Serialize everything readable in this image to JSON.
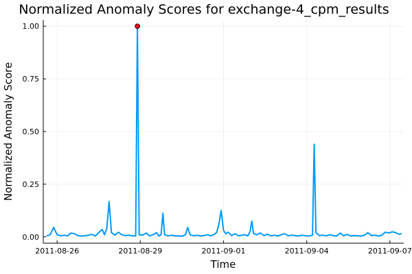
{
  "chart_data": {
    "type": "line",
    "title": "Normalized Anomaly Scores for exchange-4_cpm_results",
    "xlabel": "Time",
    "ylabel": "Normalized Anomaly Score",
    "x_axis_type": "date",
    "xlim": [
      "2011-08-25T12:00",
      "2011-09-07T12:00"
    ],
    "ylim": [
      -0.03,
      1.03
    ],
    "x_ticks": [
      {
        "value": "2011-08-26",
        "label": "2011-08-26"
      },
      {
        "value": "2011-08-29",
        "label": "2011-08-29"
      },
      {
        "value": "2011-09-01",
        "label": "2011-09-01"
      },
      {
        "value": "2011-09-04",
        "label": "2011-09-04"
      },
      {
        "value": "2011-09-07",
        "label": "2011-09-07"
      }
    ],
    "y_ticks": [
      {
        "value": 0.0,
        "label": "0.00"
      },
      {
        "value": 0.25,
        "label": "0.25"
      },
      {
        "value": 0.5,
        "label": "0.50"
      },
      {
        "value": 0.75,
        "label": "0.75"
      },
      {
        "value": 1.0,
        "label": "1.00"
      }
    ],
    "grid": true,
    "legend": "none",
    "series": [
      {
        "color": "#009af9",
        "points": [
          [
            "2011-08-25T15:00",
            0.005
          ],
          [
            "2011-08-25T18:00",
            0.01
          ],
          [
            "2011-08-25T21:00",
            0.045
          ],
          [
            "2011-08-26T00:00",
            0.01
          ],
          [
            "2011-08-26T03:00",
            0.005
          ],
          [
            "2011-08-26T06:00",
            0.008
          ],
          [
            "2011-08-26T09:00",
            0.005
          ],
          [
            "2011-08-26T12:00",
            0.018
          ],
          [
            "2011-08-26T15:00",
            0.015
          ],
          [
            "2011-08-26T18:00",
            0.006
          ],
          [
            "2011-08-26T21:00",
            0.004
          ],
          [
            "2011-08-27T00:00",
            0.005
          ],
          [
            "2011-08-27T03:00",
            0.008
          ],
          [
            "2011-08-27T06:00",
            0.012
          ],
          [
            "2011-08-27T09:00",
            0.004
          ],
          [
            "2011-08-27T12:00",
            0.02
          ],
          [
            "2011-08-27T15:00",
            0.035
          ],
          [
            "2011-08-27T17:00",
            0.01
          ],
          [
            "2011-08-27T19:00",
            0.04
          ],
          [
            "2011-08-27T21:00",
            0.168
          ],
          [
            "2011-08-27T23:00",
            0.02
          ],
          [
            "2011-08-28T02:00",
            0.008
          ],
          [
            "2011-08-28T05:00",
            0.022
          ],
          [
            "2011-08-28T08:00",
            0.01
          ],
          [
            "2011-08-28T11:00",
            0.006
          ],
          [
            "2011-08-28T14:00",
            0.008
          ],
          [
            "2011-08-28T17:00",
            0.005
          ],
          [
            "2011-08-28T20:00",
            0.004
          ],
          [
            "2011-08-28T21:30",
            1.0
          ],
          [
            "2011-08-28T23:00",
            0.01
          ],
          [
            "2011-08-29T02:00",
            0.008
          ],
          [
            "2011-08-29T05:00",
            0.018
          ],
          [
            "2011-08-29T08:00",
            0.005
          ],
          [
            "2011-08-29T11:00",
            0.01
          ],
          [
            "2011-08-29T14:00",
            0.02
          ],
          [
            "2011-08-29T16:00",
            0.004
          ],
          [
            "2011-08-29T18:00",
            0.01
          ],
          [
            "2011-08-29T19:30",
            0.112
          ],
          [
            "2011-08-29T21:00",
            0.01
          ],
          [
            "2011-08-30T00:00",
            0.005
          ],
          [
            "2011-08-30T03:00",
            0.008
          ],
          [
            "2011-08-30T06:00",
            0.004
          ],
          [
            "2011-08-30T09:00",
            0.005
          ],
          [
            "2011-08-30T12:00",
            0.003
          ],
          [
            "2011-08-30T15:00",
            0.01
          ],
          [
            "2011-08-30T17:00",
            0.045
          ],
          [
            "2011-08-30T19:00",
            0.01
          ],
          [
            "2011-08-30T22:00",
            0.005
          ],
          [
            "2011-08-31T01:00",
            0.008
          ],
          [
            "2011-08-31T04:00",
            0.004
          ],
          [
            "2011-08-31T07:00",
            0.006
          ],
          [
            "2011-08-31T10:00",
            0.01
          ],
          [
            "2011-08-31T13:00",
            0.005
          ],
          [
            "2011-08-31T16:00",
            0.012
          ],
          [
            "2011-08-31T18:00",
            0.02
          ],
          [
            "2011-08-31T20:00",
            0.06
          ],
          [
            "2011-08-31T22:00",
            0.125
          ],
          [
            "2011-09-01T00:00",
            0.03
          ],
          [
            "2011-09-01T02:00",
            0.015
          ],
          [
            "2011-09-01T04:00",
            0.022
          ],
          [
            "2011-09-01T07:00",
            0.006
          ],
          [
            "2011-09-01T10:00",
            0.015
          ],
          [
            "2011-09-01T13:00",
            0.005
          ],
          [
            "2011-09-01T16:00",
            0.008
          ],
          [
            "2011-09-01T19:00",
            0.01
          ],
          [
            "2011-09-01T21:00",
            0.004
          ],
          [
            "2011-09-01T23:00",
            0.025
          ],
          [
            "2011-09-02T00:30",
            0.075
          ],
          [
            "2011-09-02T02:00",
            0.015
          ],
          [
            "2011-09-02T05:00",
            0.01
          ],
          [
            "2011-09-02T08:00",
            0.018
          ],
          [
            "2011-09-02T11:00",
            0.006
          ],
          [
            "2011-09-02T14:00",
            0.012
          ],
          [
            "2011-09-02T17:00",
            0.005
          ],
          [
            "2011-09-02T20:00",
            0.008
          ],
          [
            "2011-09-02T23:00",
            0.004
          ],
          [
            "2011-09-03T02:00",
            0.01
          ],
          [
            "2011-09-03T05:00",
            0.015
          ],
          [
            "2011-09-03T08:00",
            0.005
          ],
          [
            "2011-09-03T11:00",
            0.008
          ],
          [
            "2011-09-03T14:00",
            0.006
          ],
          [
            "2011-09-03T17:00",
            0.004
          ],
          [
            "2011-09-03T20:00",
            0.008
          ],
          [
            "2011-09-03T23:00",
            0.005
          ],
          [
            "2011-09-04T02:00",
            0.004
          ],
          [
            "2011-09-04T05:00",
            0.008
          ],
          [
            "2011-09-04T06:30",
            0.44
          ],
          [
            "2011-09-04T08:00",
            0.02
          ],
          [
            "2011-09-04T11:00",
            0.006
          ],
          [
            "2011-09-04T14:00",
            0.008
          ],
          [
            "2011-09-04T17:00",
            0.005
          ],
          [
            "2011-09-04T20:00",
            0.01
          ],
          [
            "2011-09-04T23:00",
            0.006
          ],
          [
            "2011-09-05T02:00",
            0.004
          ],
          [
            "2011-09-05T05:00",
            0.018
          ],
          [
            "2011-09-05T08:00",
            0.005
          ],
          [
            "2011-09-05T11:00",
            0.012
          ],
          [
            "2011-09-05T14:00",
            0.004
          ],
          [
            "2011-09-05T17:00",
            0.006
          ],
          [
            "2011-09-05T20:00",
            0.005
          ],
          [
            "2011-09-05T23:00",
            0.004
          ],
          [
            "2011-09-06T02:00",
            0.008
          ],
          [
            "2011-09-06T05:00",
            0.02
          ],
          [
            "2011-09-06T08:00",
            0.006
          ],
          [
            "2011-09-06T11:00",
            0.008
          ],
          [
            "2011-09-06T14:00",
            0.004
          ],
          [
            "2011-09-06T17:00",
            0.008
          ],
          [
            "2011-09-06T20:00",
            0.022
          ],
          [
            "2011-09-06T23:00",
            0.018
          ],
          [
            "2011-09-07T02:00",
            0.024
          ],
          [
            "2011-09-07T05:00",
            0.02
          ],
          [
            "2011-09-07T08:00",
            0.012
          ],
          [
            "2011-09-07T10:00",
            0.016
          ]
        ]
      }
    ],
    "highlight": {
      "x": "2011-08-28T21:30",
      "y": 1.0,
      "color": "#e5111e"
    }
  }
}
